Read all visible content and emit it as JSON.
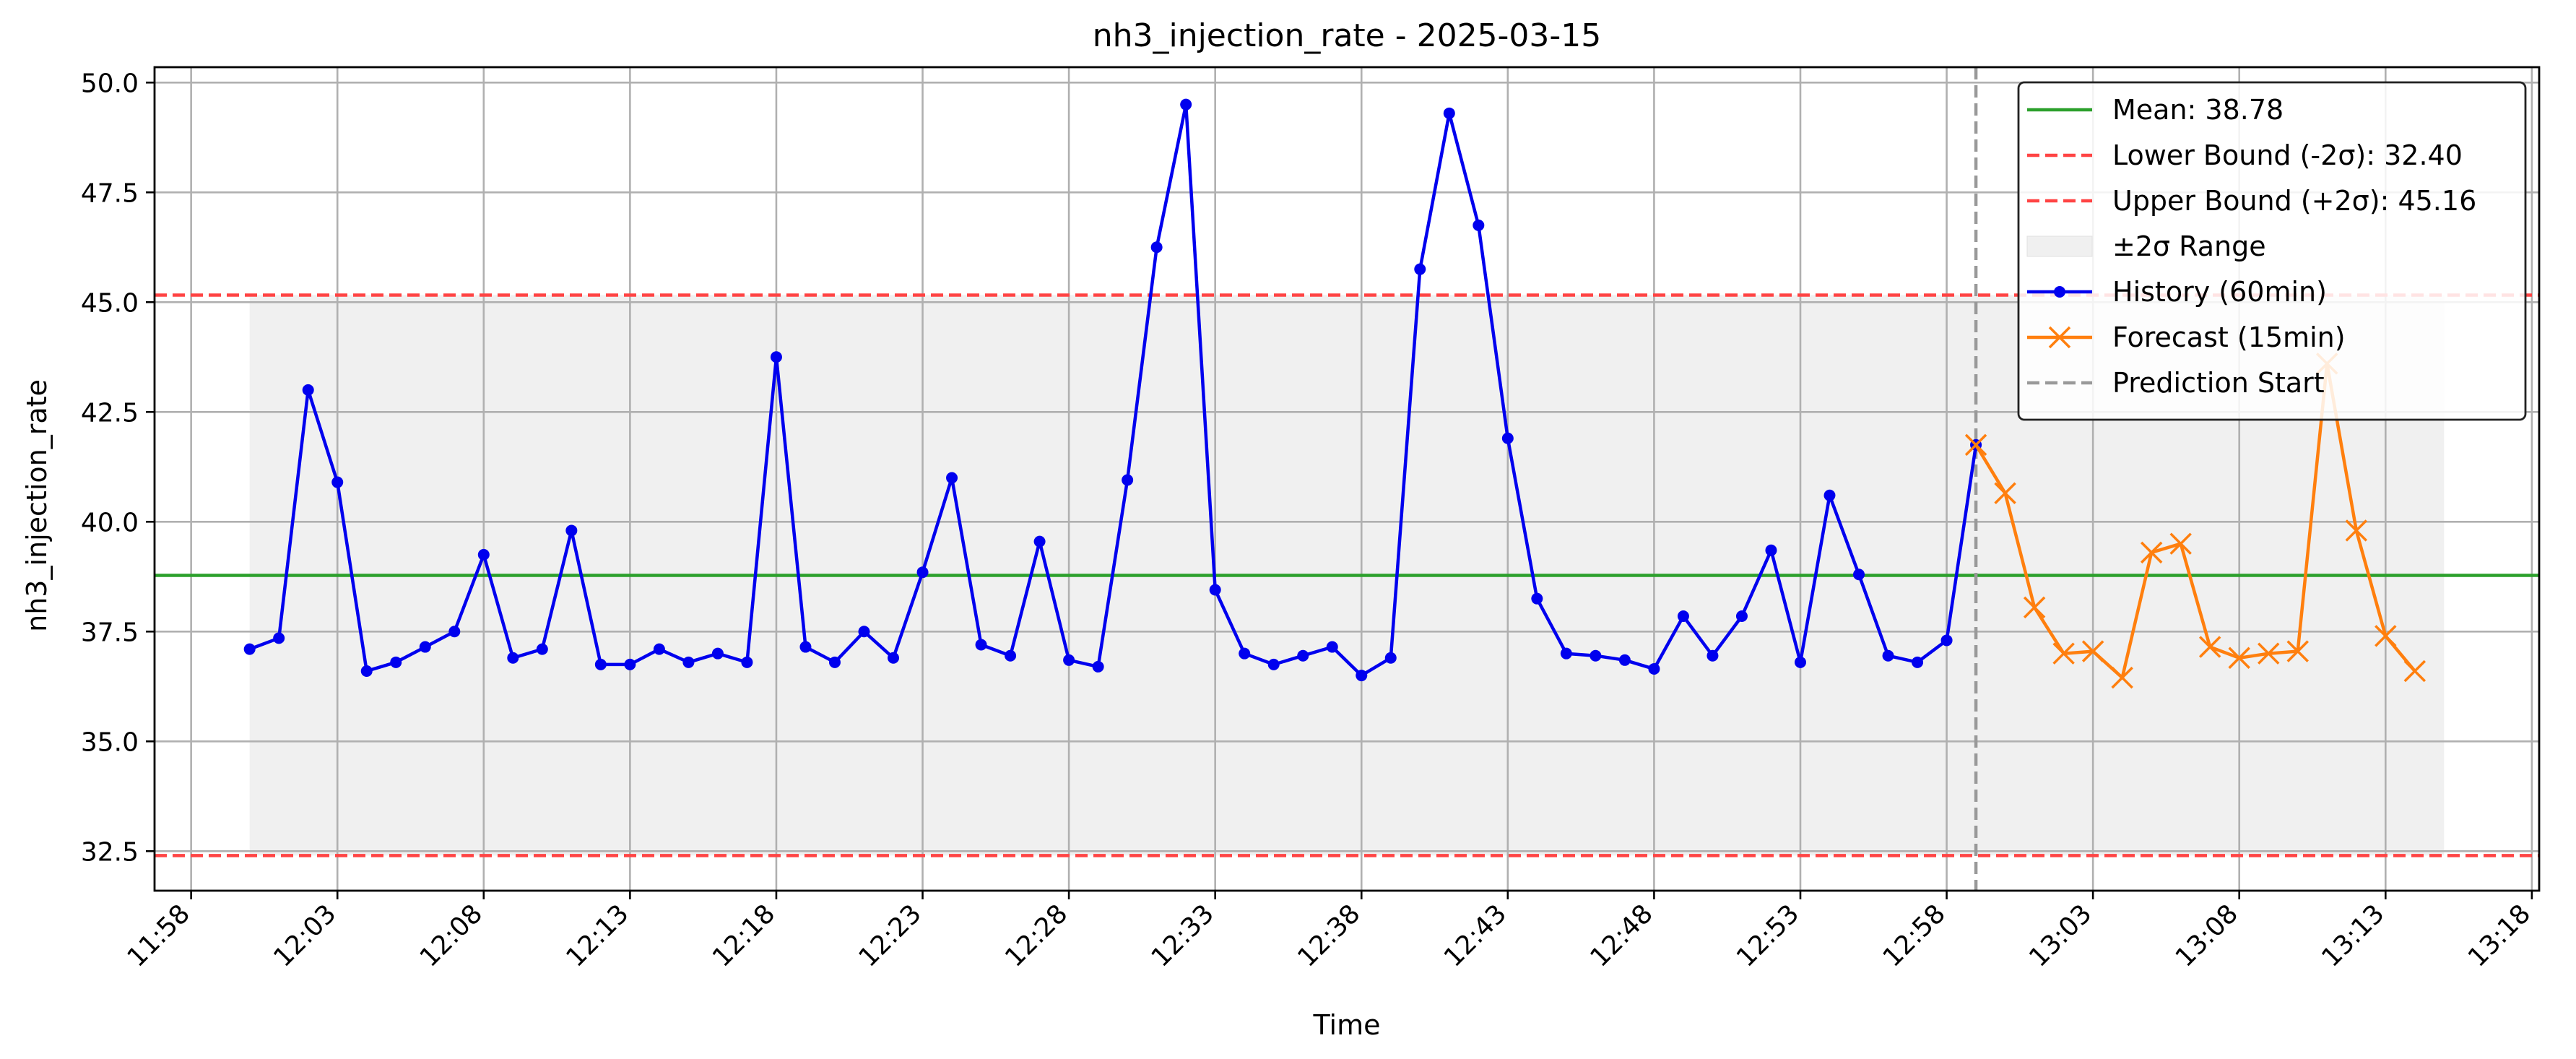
{
  "chart_data": {
    "type": "line",
    "title": "nh3_injection_rate - 2025-03-15",
    "xlabel": "Time",
    "ylabel": "nh3_injection_rate",
    "ylim": [
      31.6,
      50.35
    ],
    "xlim": [
      "11:56:45",
      "13:18:15"
    ],
    "grid": true,
    "legend_position": "top-right",
    "x_ticks": [
      "11:58",
      "12:03",
      "12:08",
      "12:13",
      "12:18",
      "12:23",
      "12:28",
      "12:33",
      "12:38",
      "12:43",
      "12:48",
      "12:53",
      "12:58",
      "13:03",
      "13:08",
      "13:13",
      "13:18"
    ],
    "y_ticks": [
      "32.5",
      "35.0",
      "37.5",
      "40.0",
      "42.5",
      "45.0",
      "47.5",
      "50.0"
    ],
    "band": {
      "label": "±2σ Range",
      "lower": 32.4,
      "upper": 45.16,
      "x_start": "12:00",
      "x_end": "13:15",
      "color": "#f0f0f0"
    },
    "reference_lines": [
      {
        "label": "Mean: 38.78",
        "value": 38.78,
        "color": "#2ca02c",
        "style": "solid"
      },
      {
        "label": "Lower Bound (-2σ): 32.40",
        "value": 32.4,
        "color": "#ff4444",
        "style": "dashed"
      },
      {
        "label": "Upper Bound (+2σ): 45.16",
        "value": 45.16,
        "color": "#ff4444",
        "style": "dashed"
      }
    ],
    "prediction_start": {
      "label": "Prediction Start",
      "x": "12:59",
      "color": "#999999"
    },
    "series": [
      {
        "name": "History (60min)",
        "color": "#0000ee",
        "marker": "circle",
        "x": [
          "12:00",
          "12:01",
          "12:02",
          "12:03",
          "12:04",
          "12:05",
          "12:06",
          "12:07",
          "12:08",
          "12:09",
          "12:10",
          "12:11",
          "12:12",
          "12:13",
          "12:14",
          "12:15",
          "12:16",
          "12:17",
          "12:18",
          "12:19",
          "12:20",
          "12:21",
          "12:22",
          "12:23",
          "12:24",
          "12:25",
          "12:26",
          "12:27",
          "12:28",
          "12:29",
          "12:30",
          "12:31",
          "12:32",
          "12:33",
          "12:34",
          "12:35",
          "12:36",
          "12:37",
          "12:38",
          "12:39",
          "12:40",
          "12:41",
          "12:42",
          "12:43",
          "12:44",
          "12:45",
          "12:46",
          "12:47",
          "12:48",
          "12:49",
          "12:50",
          "12:51",
          "12:52",
          "12:53",
          "12:54",
          "12:55",
          "12:56",
          "12:57",
          "12:58",
          "12:59"
        ],
        "values": [
          37.1,
          37.35,
          43.0,
          40.9,
          36.6,
          36.8,
          37.15,
          37.5,
          39.25,
          36.9,
          37.1,
          39.8,
          36.75,
          36.75,
          37.1,
          36.8,
          37.0,
          36.8,
          43.75,
          37.15,
          36.8,
          37.5,
          36.9,
          38.85,
          41.0,
          37.2,
          36.95,
          39.55,
          36.85,
          36.7,
          40.95,
          46.25,
          49.5,
          38.45,
          37.0,
          36.75,
          36.95,
          37.15,
          36.5,
          36.9,
          45.75,
          49.3,
          46.75,
          41.9,
          38.25,
          37.0,
          36.95,
          36.85,
          36.65,
          37.85,
          36.95,
          37.85,
          39.35,
          36.8,
          40.6,
          38.8,
          36.95,
          36.8,
          37.3,
          41.75
        ]
      },
      {
        "name": "Forecast (15min)",
        "color": "#ff7f0e",
        "marker": "x",
        "x": [
          "12:59",
          "13:00",
          "13:01",
          "13:02",
          "13:03",
          "13:04",
          "13:05",
          "13:06",
          "13:07",
          "13:08",
          "13:09",
          "13:10",
          "13:11",
          "13:12",
          "13:13",
          "13:14"
        ],
        "values": [
          41.75,
          40.65,
          38.05,
          37.0,
          37.05,
          36.45,
          39.3,
          39.5,
          37.15,
          36.9,
          37.0,
          37.05,
          43.6,
          39.8,
          37.4,
          36.6
        ]
      }
    ]
  }
}
